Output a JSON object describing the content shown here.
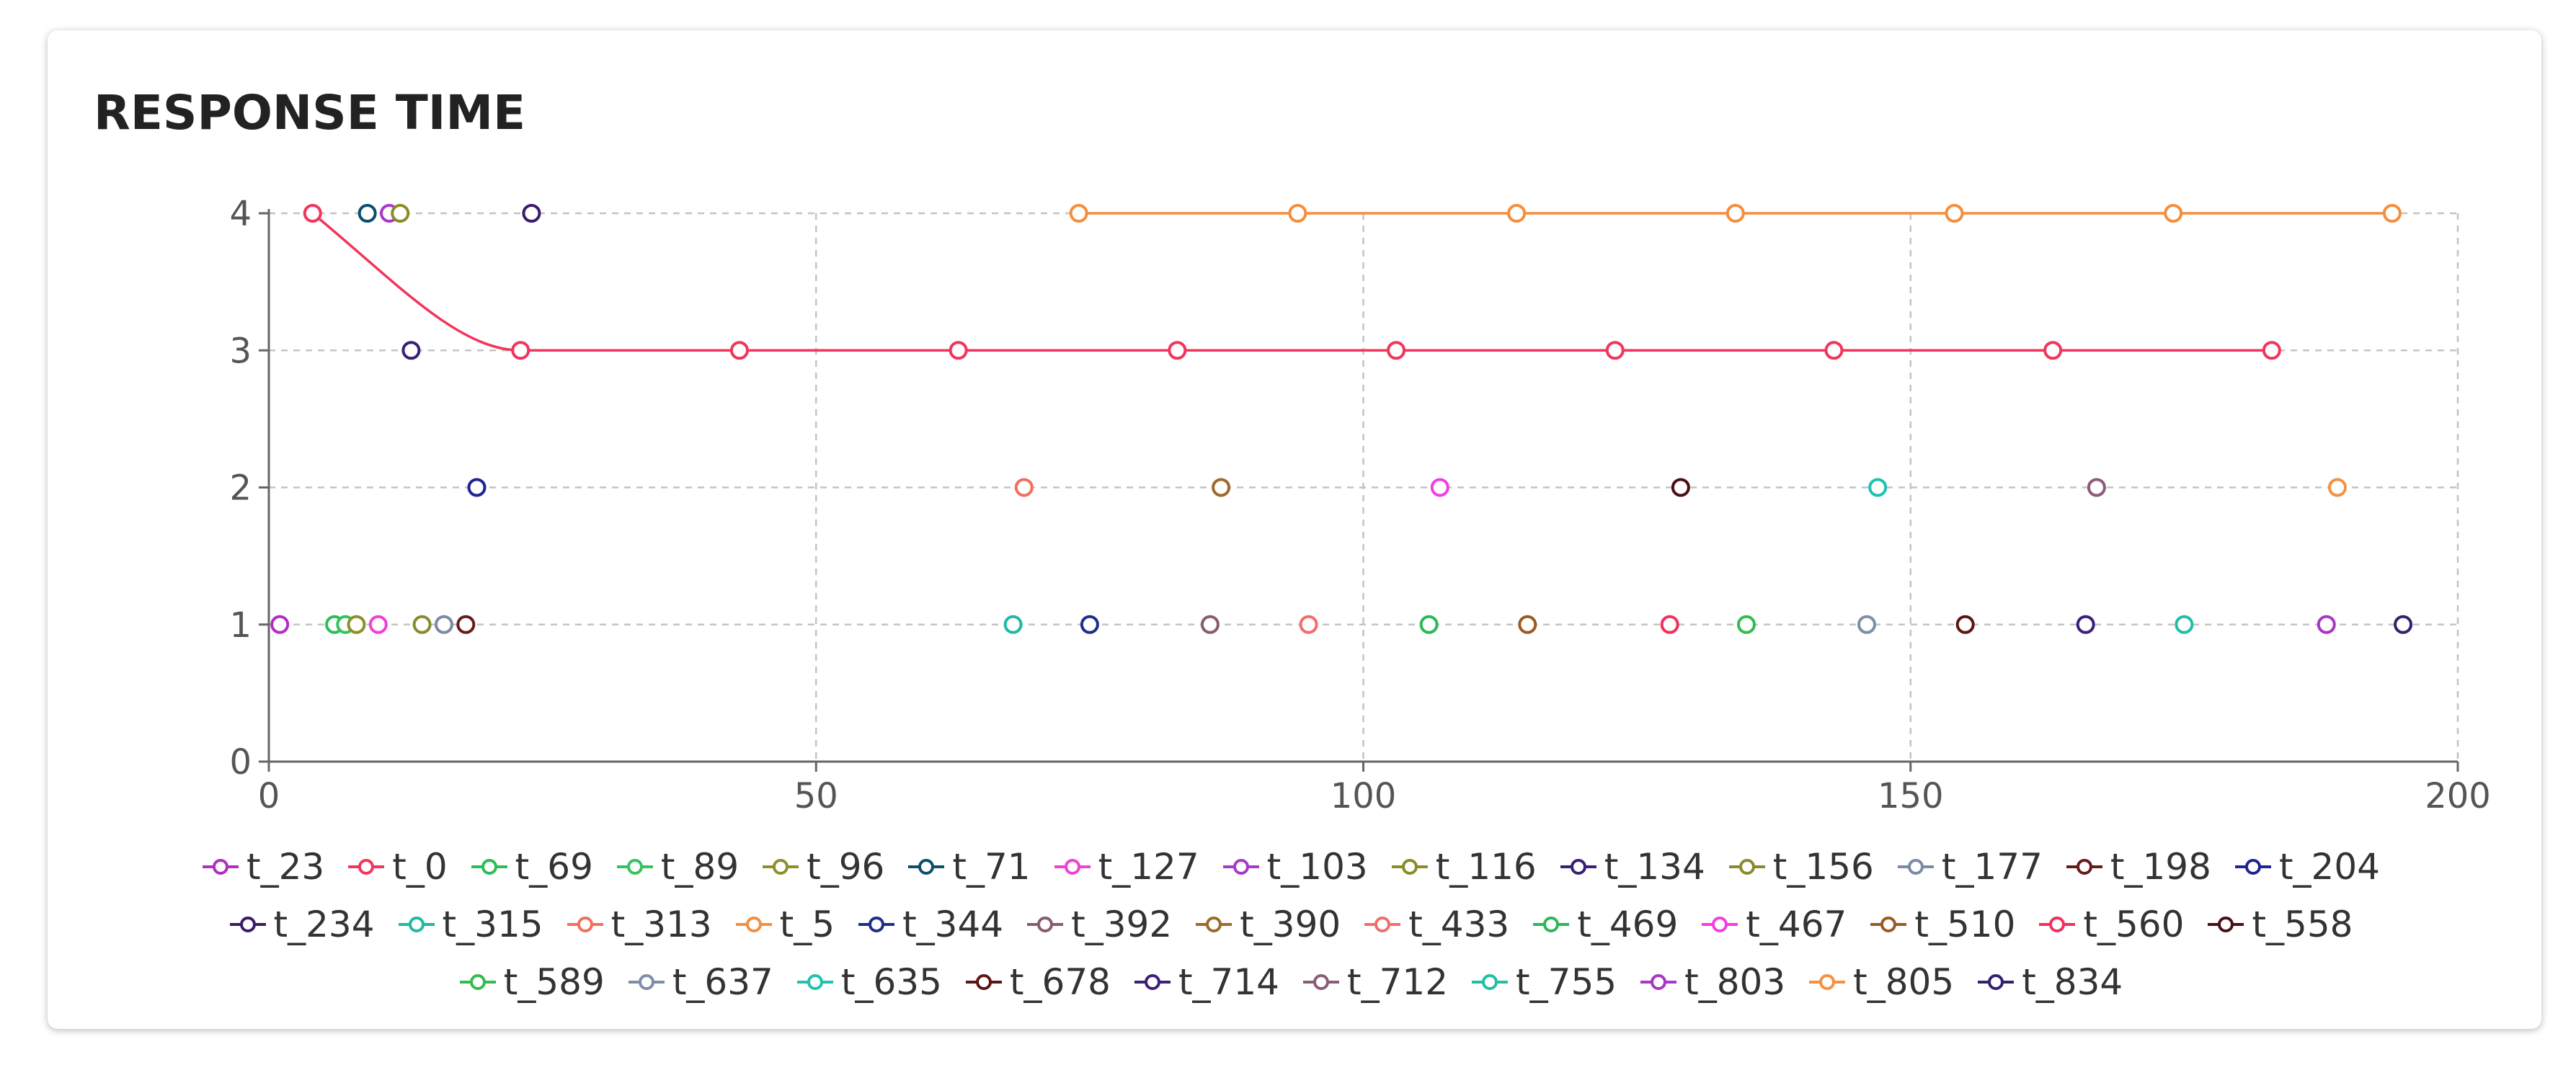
{
  "card": {
    "title": "RESPONSE TIME"
  },
  "chart_data": {
    "type": "scatter",
    "title": "RESPONSE TIME",
    "xlim": [
      0,
      200
    ],
    "ylim": [
      0,
      4
    ],
    "x_ticks": [
      0,
      50,
      100,
      150,
      200
    ],
    "y_ticks": [
      0,
      1,
      2,
      3,
      4
    ],
    "grid": true,
    "legend_placement": "bottom-center",
    "series": [
      {
        "name": "t_23",
        "color": "#b02fc1",
        "points": [
          [
            1,
            1
          ]
        ]
      },
      {
        "name": "t_0",
        "color": "#f2355c",
        "line": true,
        "curve_first_segment": true,
        "points": [
          [
            4,
            4
          ],
          [
            23,
            3
          ],
          [
            43,
            3
          ],
          [
            63,
            3
          ],
          [
            83,
            3
          ],
          [
            103,
            3
          ],
          [
            123,
            3
          ],
          [
            143,
            3
          ],
          [
            163,
            3
          ],
          [
            183,
            3
          ]
        ]
      },
      {
        "name": "t_69",
        "color": "#2bbd57",
        "points": [
          [
            6,
            1
          ]
        ]
      },
      {
        "name": "t_89",
        "color": "#33c45e",
        "points": [
          [
            7,
            1
          ]
        ]
      },
      {
        "name": "t_96",
        "color": "#8f8f2a",
        "points": [
          [
            8,
            1
          ]
        ]
      },
      {
        "name": "t_71",
        "color": "#0a4f6e",
        "points": [
          [
            9,
            4
          ]
        ]
      },
      {
        "name": "t_127",
        "color": "#f23fd6",
        "points": [
          [
            10,
            1
          ]
        ]
      },
      {
        "name": "t_103",
        "color": "#a838c9",
        "points": [
          [
            11,
            4
          ]
        ]
      },
      {
        "name": "t_116",
        "color": "#8c8c26",
        "points": [
          [
            12,
            4
          ]
        ]
      },
      {
        "name": "t_134",
        "color": "#3b1f74",
        "points": [
          [
            13,
            3
          ]
        ]
      },
      {
        "name": "t_156",
        "color": "#8a8a2c",
        "points": [
          [
            14,
            1
          ]
        ]
      },
      {
        "name": "t_177",
        "color": "#7b8aa6",
        "points": [
          [
            16,
            1
          ]
        ]
      },
      {
        "name": "t_198",
        "color": "#661b1b",
        "points": [
          [
            18,
            1
          ]
        ]
      },
      {
        "name": "t_204",
        "color": "#1f2494",
        "points": [
          [
            19,
            2
          ]
        ]
      },
      {
        "name": "t_234",
        "color": "#3a1b6b",
        "points": [
          [
            24,
            4
          ]
        ]
      },
      {
        "name": "t_315",
        "color": "#20b9a3",
        "points": [
          [
            68,
            1
          ]
        ]
      },
      {
        "name": "t_313",
        "color": "#f07060",
        "points": [
          [
            69,
            2
          ]
        ]
      },
      {
        "name": "t_5",
        "color": "#f58e3d",
        "line": true,
        "points": [
          [
            74,
            4
          ],
          [
            94,
            4
          ],
          [
            114,
            4
          ],
          [
            134,
            4
          ],
          [
            154,
            4
          ],
          [
            174,
            4
          ],
          [
            194,
            4
          ]
        ]
      },
      {
        "name": "t_344",
        "color": "#1e2e8c",
        "points": [
          [
            75,
            1
          ]
        ]
      },
      {
        "name": "t_392",
        "color": "#8a5a70",
        "points": [
          [
            86,
            1
          ]
        ]
      },
      {
        "name": "t_390",
        "color": "#9c6a2a",
        "points": [
          [
            87,
            2
          ]
        ]
      },
      {
        "name": "t_433",
        "color": "#f26d6d",
        "points": [
          [
            95,
            1
          ]
        ]
      },
      {
        "name": "t_469",
        "color": "#2cb855",
        "points": [
          [
            106,
            1
          ]
        ]
      },
      {
        "name": "t_467",
        "color": "#f23fe2",
        "points": [
          [
            107,
            2
          ]
        ]
      },
      {
        "name": "t_510",
        "color": "#9a5b22",
        "points": [
          [
            115,
            1
          ]
        ]
      },
      {
        "name": "t_560",
        "color": "#f2305d",
        "points": [
          [
            128,
            1
          ]
        ]
      },
      {
        "name": "t_558",
        "color": "#4a0f14",
        "points": [
          [
            129,
            2
          ]
        ]
      },
      {
        "name": "t_589",
        "color": "#35bb50",
        "points": [
          [
            135,
            1
          ]
        ]
      },
      {
        "name": "t_637",
        "color": "#7d8ea8",
        "points": [
          [
            146,
            1
          ]
        ]
      },
      {
        "name": "t_635",
        "color": "#1ec2b0",
        "points": [
          [
            147,
            2
          ]
        ]
      },
      {
        "name": "t_678",
        "color": "#5a1515",
        "points": [
          [
            155,
            1
          ]
        ]
      },
      {
        "name": "t_714",
        "color": "#3d1f7a",
        "points": [
          [
            166,
            1
          ]
        ]
      },
      {
        "name": "t_712",
        "color": "#8c5a7a",
        "points": [
          [
            167,
            2
          ]
        ]
      },
      {
        "name": "t_755",
        "color": "#22bea6",
        "points": [
          [
            175,
            1
          ]
        ]
      },
      {
        "name": "t_803",
        "color": "#a936c4",
        "points": [
          [
            188,
            1
          ]
        ]
      },
      {
        "name": "t_805",
        "color": "#f59140",
        "points": [
          [
            189,
            2
          ]
        ]
      },
      {
        "name": "t_834",
        "color": "#35206e",
        "points": [
          [
            195,
            1
          ]
        ]
      }
    ]
  }
}
